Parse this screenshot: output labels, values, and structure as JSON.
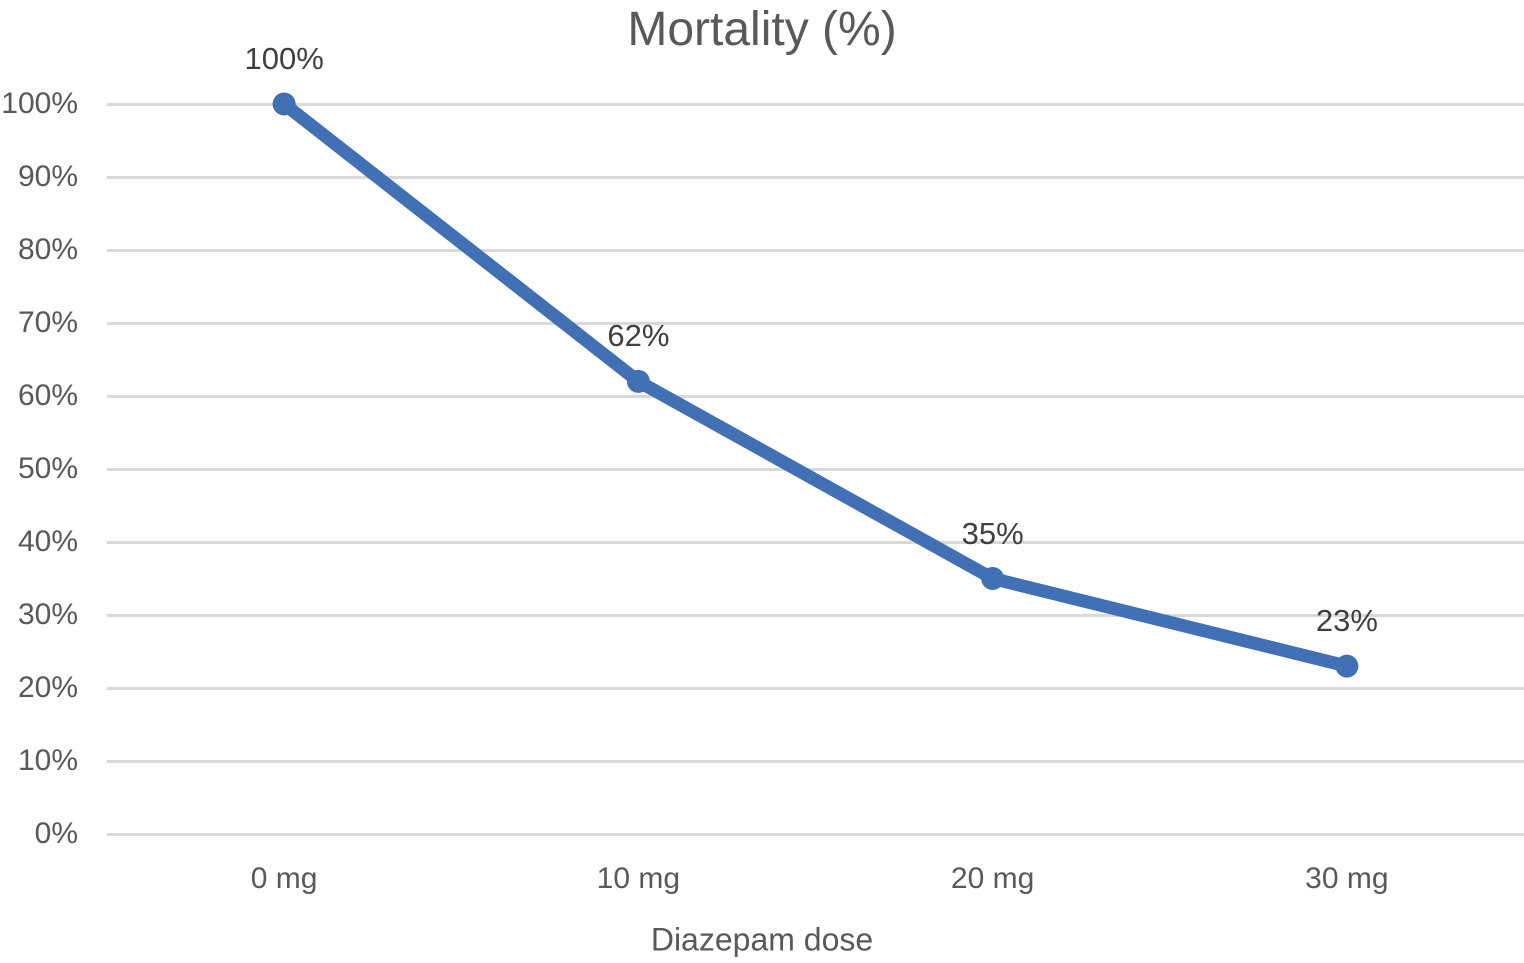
{
  "chart_data": {
    "type": "line",
    "title": "Mortality (%)",
    "xlabel": "Diazepam dose",
    "ylabel": "",
    "categories": [
      "0 mg",
      "10 mg",
      "20 mg",
      "30 mg"
    ],
    "values": [
      100,
      62,
      35,
      23
    ],
    "data_labels": [
      "100%",
      "62%",
      "35%",
      "23%"
    ],
    "y_ticks": [
      {
        "label": "0%",
        "value": 0
      },
      {
        "label": "10%",
        "value": 10
      },
      {
        "label": "20%",
        "value": 20
      },
      {
        "label": "30%",
        "value": 30
      },
      {
        "label": "40%",
        "value": 40
      },
      {
        "label": "50%",
        "value": 50
      },
      {
        "label": "60%",
        "value": 60
      },
      {
        "label": "70%",
        "value": 70
      },
      {
        "label": "80%",
        "value": 80
      },
      {
        "label": "90%",
        "value": 90
      },
      {
        "label": "100%",
        "value": 100
      }
    ],
    "ylim": [
      0,
      100
    ],
    "grid": "horizontal",
    "legend": "none",
    "colors": {
      "line": "#4170B5",
      "marker": "#4170B5",
      "gridline": "#D9D9D9",
      "title_text": "#595959",
      "axis_text": "#595959",
      "data_label_text": "#404040"
    }
  }
}
